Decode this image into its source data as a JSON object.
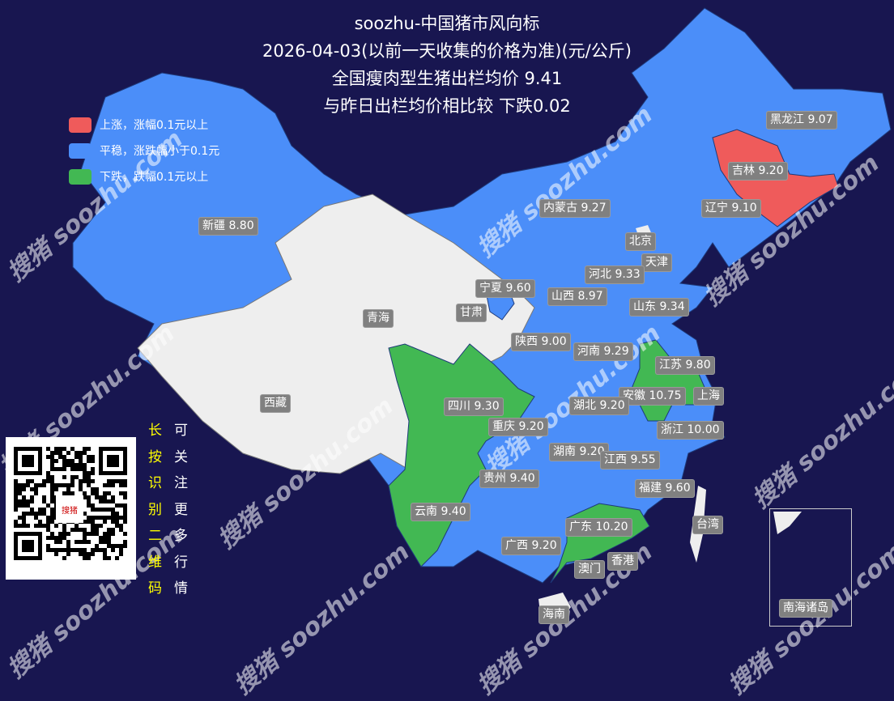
{
  "title": {
    "line1": "soozhu-中国猪市风向标",
    "line2": "2026-04-03(以前一天收集的价格为准)(元/公斤)",
    "line3": "全国瘦肉型生猪出栏均价 9.41",
    "line4": "与昨日出栏均价相比较 下跌0.02"
  },
  "legend": [
    {
      "label": "上涨，涨幅0.1元以上",
      "color": "#ef5b5b"
    },
    {
      "label": "平稳，涨跌幅小于0.1元",
      "color": "#4b8ef9"
    },
    {
      "label": "下跌，跌幅0.1元以上",
      "color": "#42b853"
    }
  ],
  "colors": {
    "background": "#181650",
    "no_data": "#eeeeee"
  },
  "provinces": [
    {
      "name": "黑龙江 9.07",
      "status": "flat"
    },
    {
      "name": "吉林 9.20",
      "status": "up"
    },
    {
      "name": "辽宁 9.10",
      "status": "flat"
    },
    {
      "name": "内蒙古 9.27",
      "status": "flat"
    },
    {
      "name": "新疆 8.80",
      "status": "flat"
    },
    {
      "name": "北京",
      "status": "none"
    },
    {
      "name": "天津",
      "status": "flat"
    },
    {
      "name": "河北 9.33",
      "status": "flat"
    },
    {
      "name": "宁夏 9.60",
      "status": "flat"
    },
    {
      "name": "山西 8.97",
      "status": "flat"
    },
    {
      "name": "甘肃",
      "status": "none"
    },
    {
      "name": "山东 9.34",
      "status": "flat"
    },
    {
      "name": "青海",
      "status": "none"
    },
    {
      "name": "陕西 9.00",
      "status": "flat"
    },
    {
      "name": "河南 9.29",
      "status": "flat"
    },
    {
      "name": "江苏 9.80",
      "status": "down"
    },
    {
      "name": "安徽 10.75",
      "status": "down"
    },
    {
      "name": "上海",
      "status": "none"
    },
    {
      "name": "西藏",
      "status": "none"
    },
    {
      "name": "四川 9.30",
      "status": "down"
    },
    {
      "name": "湖北 9.20",
      "status": "flat"
    },
    {
      "name": "重庆 9.20",
      "status": "flat"
    },
    {
      "name": "浙江 10.00",
      "status": "flat"
    },
    {
      "name": "湖南 9.20",
      "status": "flat"
    },
    {
      "name": "江西 9.55",
      "status": "flat"
    },
    {
      "name": "贵州 9.40",
      "status": "flat"
    },
    {
      "name": "福建 9.60",
      "status": "flat"
    },
    {
      "name": "云南 9.40",
      "status": "down"
    },
    {
      "name": "台湾",
      "status": "none"
    },
    {
      "name": "广东 10.20",
      "status": "down"
    },
    {
      "name": "广西 9.20",
      "status": "flat"
    },
    {
      "name": "香港",
      "status": "none"
    },
    {
      "name": "澳门",
      "status": "none"
    },
    {
      "name": "海南",
      "status": "none"
    },
    {
      "name": "南海诸岛",
      "status": "none"
    }
  ],
  "qr": {
    "left_text": [
      "长",
      "按",
      "识",
      "别",
      "二",
      "维",
      "码"
    ],
    "right_text": [
      "可",
      "关",
      "注",
      "更",
      "多",
      "行",
      "情"
    ],
    "left_color": "#ffff00",
    "logo_text": "搜猪"
  },
  "watermark": "搜猪 soozhu.com"
}
